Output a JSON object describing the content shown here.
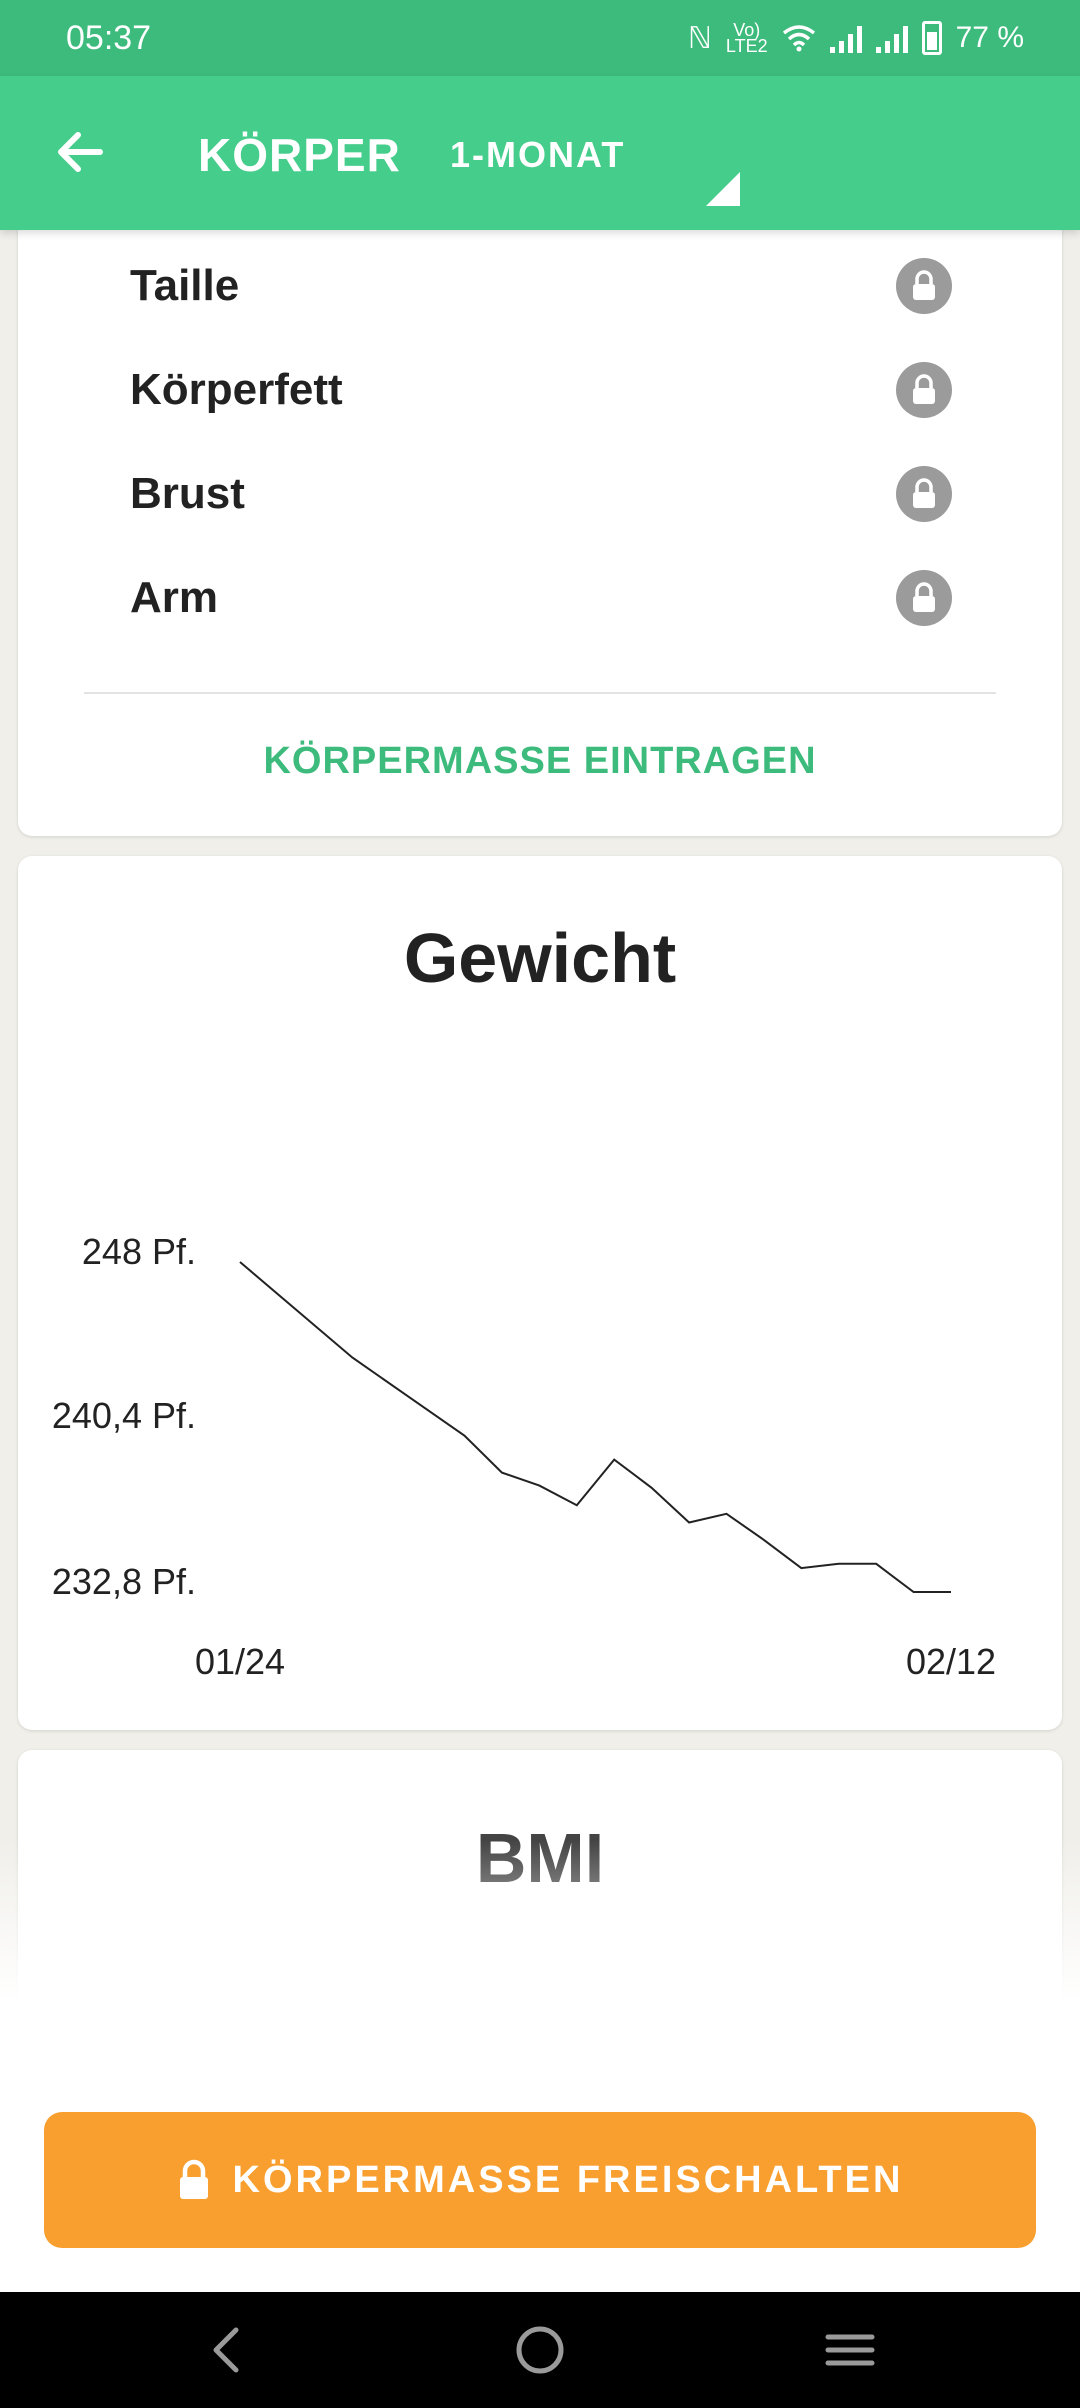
{
  "status_bar": {
    "time": "05:37",
    "battery_percent": "77 %",
    "icons": [
      "nfc-icon",
      "volte-icon",
      "wifi-icon",
      "signal-icon",
      "signal-icon",
      "battery-icon"
    ]
  },
  "app_bar": {
    "back_icon": "arrow-left-icon",
    "title": "KÖRPER",
    "period": "1-MONAT",
    "dropdown_icon": "triangle-dropdown-icon"
  },
  "measurements": {
    "items": [
      {
        "label": "Taille",
        "locked": true
      },
      {
        "label": "Körperfett",
        "locked": true
      },
      {
        "label": "Brust",
        "locked": true
      },
      {
        "label": "Arm",
        "locked": true
      }
    ],
    "enter_link": "KÖRPERMASSE EINTRAGEN"
  },
  "weight_chart": {
    "title": "Gewicht"
  },
  "chart_data": {
    "type": "line",
    "title": "Gewicht",
    "x_tick_labels": [
      "01/24",
      "02/12"
    ],
    "y_tick_labels": [
      "248 Pf.",
      "240,4 Pf.",
      "232,8 Pf."
    ],
    "ylim": [
      232.8,
      248
    ],
    "x": [
      0,
      3,
      6,
      7,
      8,
      9,
      10,
      11,
      12,
      13,
      14,
      15,
      16,
      17,
      18,
      19
    ],
    "values": [
      248,
      243.6,
      240,
      238.3,
      237.7,
      236.8,
      238.9,
      237.6,
      236,
      236.4,
      235.2,
      233.9,
      234.1,
      234.1,
      232.8,
      232.8
    ],
    "grid": false,
    "legend": "none",
    "line_color": "#222222"
  },
  "bmi_card": {
    "title": "BMI"
  },
  "unlock_button": {
    "label": "KÖRPERMASSE FREISCHALTEN",
    "icon": "lock-icon",
    "color": "#f89f30"
  },
  "nav_bar": {
    "icons": [
      "nav-back-icon",
      "nav-home-icon",
      "nav-menu-icon"
    ]
  },
  "colors": {
    "status_bar": "#3dbb7c",
    "app_bar": "#45cd8b",
    "accent": "#3dbb7c",
    "lock_gray": "#9b9b9b"
  }
}
